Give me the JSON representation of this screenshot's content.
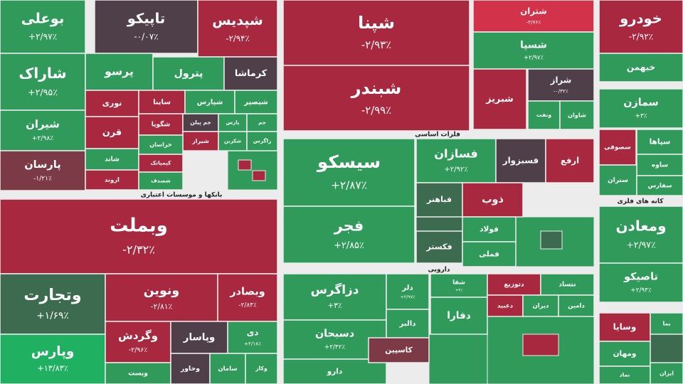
{
  "tiles": [
    {
      "label": "بوعلی",
      "change": "+۲/۹۷٪",
      "color": "#2f9a5a"
    },
    {
      "label": "شاراک",
      "change": "+۲/۹۵٪",
      "color": "#2f9a5a"
    },
    {
      "label": "شیران",
      "change": "+۲/۹۸٪",
      "color": "#2f9a5a"
    },
    {
      "label": "پارسان",
      "change": "-۱/۲۱٪",
      "color": "#7b3a45"
    },
    {
      "label": "تاپیکو",
      "change": "-۰/۰۷٪",
      "color": "#4e3f48"
    },
    {
      "label": "شپدیس",
      "change": "-۲/۹۴٪",
      "color": "#a8283f"
    },
    {
      "label": "پرسو",
      "color": "#2f9a5a"
    },
    {
      "label": "پترول",
      "color": "#2f9a5a"
    },
    {
      "label": "کرماشا",
      "color": "#4e3f48"
    },
    {
      "label": "نوری",
      "color": "#a8283f"
    },
    {
      "label": "ساینا",
      "color": "#a8283f"
    },
    {
      "label": "شپارس",
      "color": "#2f9a5a"
    },
    {
      "label": "شیصپر",
      "color": "#2f9a5a"
    },
    {
      "label": "قرن",
      "color": "#a8283f"
    },
    {
      "label": "شگویا",
      "color": "#a8283f"
    },
    {
      "label": "جم پیلن",
      "color": "#4e3f48"
    },
    {
      "label": "پارس",
      "color": "#2f9a5a"
    },
    {
      "label": "جم",
      "color": "#2f9a5a"
    },
    {
      "label": "شاند",
      "color": "#2f9a5a"
    },
    {
      "label": "شیراز",
      "color": "#a8283f"
    },
    {
      "label": "شکربن",
      "color": "#2f9a5a"
    },
    {
      "label": "زاگرس",
      "color": "#2f9a5a"
    },
    {
      "label": "خراسان",
      "color": "#2f9a5a"
    },
    {
      "label": "اروند",
      "color": "#a8283f"
    },
    {
      "label": "کیمیاتک",
      "color": "#a8283f"
    },
    {
      "label": "شصدف",
      "color": "#2f9a5a"
    },
    {
      "label": "وبملت",
      "change": "-۲/۳۲٪",
      "color": "#a8283f"
    },
    {
      "label": "وتجارت",
      "change": "+۱/۶۹٪",
      "color": "#3d6b50"
    },
    {
      "label": "ونوین",
      "change": "-۲/۸۱٪",
      "color": "#a8283f"
    },
    {
      "label": "وبصادر",
      "change": "-۲/۸۴٪",
      "color": "#a8283f"
    },
    {
      "label": "وپارس",
      "change": "+۱۳/۸۳٪",
      "color": "#1fb062"
    },
    {
      "label": "وگردش",
      "change": "-۲/۹۶٪",
      "color": "#a8283f"
    },
    {
      "label": "وپاسار",
      "color": "#4e3f48"
    },
    {
      "label": "دی",
      "change": "+۲/۱۸٪",
      "color": "#2f9a5a"
    },
    {
      "label": "ویست",
      "color": "#2f9a5a"
    },
    {
      "label": "وخاور",
      "color": "#4e3f48"
    },
    {
      "label": "سامان",
      "color": "#2f9a5a"
    },
    {
      "label": "وکار",
      "color": "#2f9a5a"
    },
    {
      "label": "شپنا",
      "change": "-۲/۹۳٪",
      "color": "#a8283f"
    },
    {
      "label": "شبندر",
      "change": "-۲/۹۹٪",
      "color": "#a8283f"
    },
    {
      "label": "سیسکو",
      "change": "+۲/۸۷٪",
      "color": "#2f9a5a"
    },
    {
      "label": "فجر",
      "change": "+۲/۸۵٪",
      "color": "#2f9a5a"
    },
    {
      "label": "فسازان",
      "change": "+۲/۹۲٪",
      "color": "#2f9a5a"
    },
    {
      "label": "فسبزوار",
      "color": "#4e3f48"
    },
    {
      "label": "ارفع",
      "color": "#a8283f"
    },
    {
      "label": "فباهنر",
      "color": "#3d6b50"
    },
    {
      "label": "فکستر",
      "color": "#3d6b50"
    },
    {
      "label": "ذوب",
      "color": "#a8283f"
    },
    {
      "label": "فولاد",
      "color": "#2f9a5a"
    },
    {
      "label": "فملی",
      "color": "#2f9a5a"
    },
    {
      "label": "دزاگرس",
      "change": "+۳٪",
      "color": "#2f9a5a"
    },
    {
      "label": "دسبحان",
      "change": "+۲/۴۲٪",
      "color": "#2f9a5a"
    },
    {
      "label": "دارو",
      "color": "#2f9a5a"
    },
    {
      "label": "دلر",
      "change": "+۲/۹۷٪",
      "color": "#2f9a5a"
    },
    {
      "label": "دالبر",
      "color": "#2f9a5a"
    },
    {
      "label": "کاسپین",
      "color": "#7b3a45"
    },
    {
      "label": "شفا",
      "change": "+۳٪",
      "color": "#2f9a5a"
    },
    {
      "label": "دتوزیع",
      "color": "#a8283f"
    },
    {
      "label": "نتساد",
      "color": "#2f9a5a"
    },
    {
      "label": "دفارا",
      "color": "#2f9a5a"
    },
    {
      "label": "دعبید",
      "color": "#a8283f"
    },
    {
      "label": "دیران",
      "color": "#2f9a5a"
    },
    {
      "label": "دامین",
      "color": "#2f9a5a"
    },
    {
      "label": "شتران",
      "change": "-۴/۷۶٪",
      "color": "#d2334a"
    },
    {
      "label": "شسپا",
      "change": "+۲/۹۷٪",
      "color": "#2f9a5a"
    },
    {
      "label": "شبریز",
      "color": "#a8283f"
    },
    {
      "label": "شراز",
      "change": "-۰/۳۲٪",
      "color": "#4e3f48"
    },
    {
      "label": "ونفت",
      "color": "#2f9a5a"
    },
    {
      "label": "شاوان",
      "color": "#2f9a5a"
    },
    {
      "label": "خودرو",
      "change": "-۲/۹۲٪",
      "color": "#a8283f"
    },
    {
      "label": "خبهمن",
      "color": "#2f9a5a"
    },
    {
      "label": "سمازن",
      "change": "+۳٪",
      "color": "#2f9a5a"
    },
    {
      "label": "سصوفی",
      "color": "#a8283f"
    },
    {
      "label": "سپاها",
      "color": "#2f9a5a"
    },
    {
      "label": "ساوه",
      "color": "#2f9a5a"
    },
    {
      "label": "ستران",
      "color": "#2f9a5a"
    },
    {
      "label": "سفارس",
      "color": "#2f9a5a"
    },
    {
      "label": "ومعادن",
      "change": "+۲/۹۷٪",
      "color": "#2f9a5a"
    },
    {
      "label": "تاصیکو",
      "change": "+۲/۹۴٪",
      "color": "#2f9a5a"
    },
    {
      "label": "وسایا",
      "color": "#a8283f"
    },
    {
      "label": "ومهان",
      "color": "#2f9a5a"
    },
    {
      "label": "نماد",
      "color": "#2f9a5a"
    },
    {
      "label": "بما",
      "color": "#2f9a5a"
    },
    {
      "label": "ایران",
      "color": "#2f9a5a"
    }
  ],
  "headers": [
    "بانکها و موسسات اعتباری",
    "فلزات اساسی",
    "دارویی",
    "کانه های فلزی"
  ]
}
